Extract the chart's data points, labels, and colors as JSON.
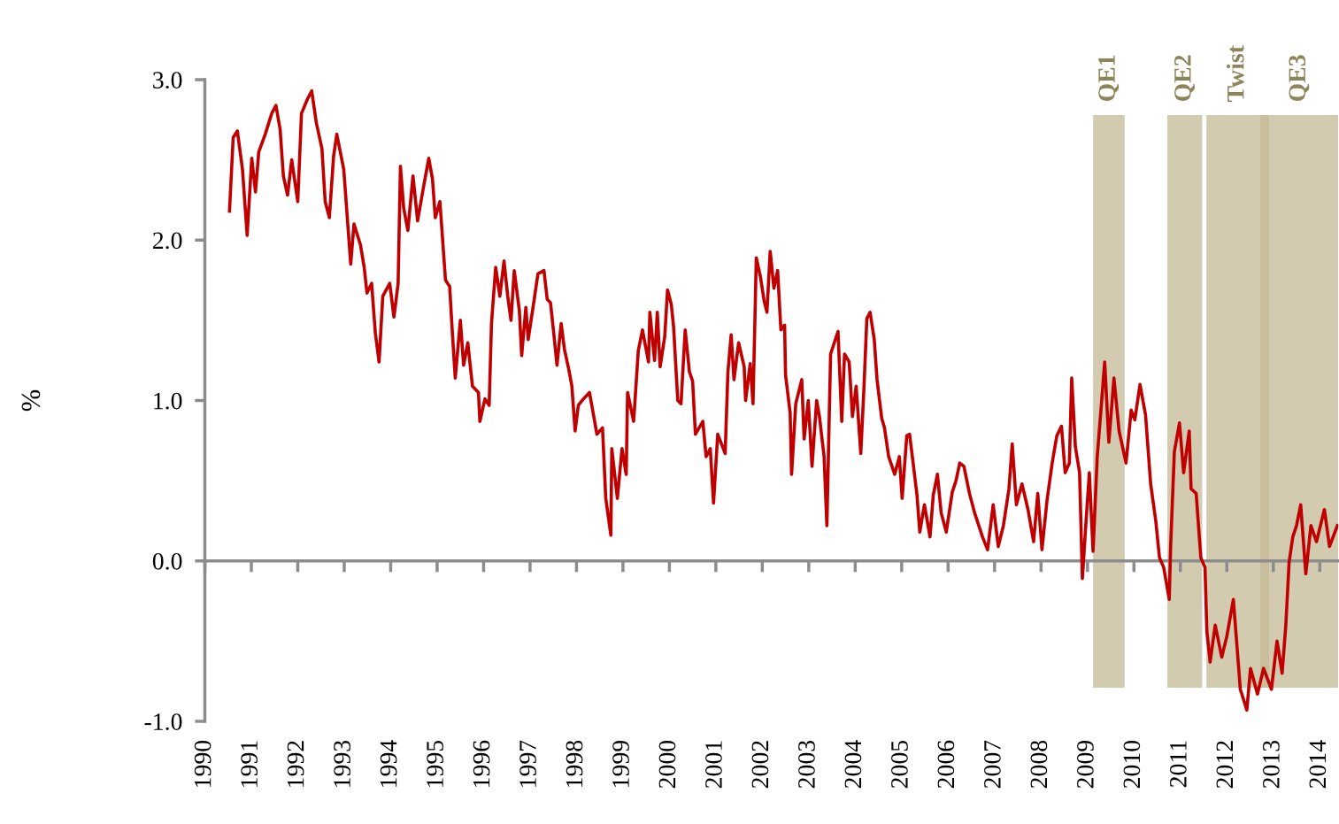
{
  "chart_data": {
    "type": "line",
    "ylabel": "%",
    "x": [
      1990.53,
      1990.61,
      1990.7,
      1990.81,
      1990.91,
      1991.01,
      1991.09,
      1991.16,
      1991.3,
      1991.44,
      1991.53,
      1991.62,
      1991.69,
      1991.78,
      1991.87,
      1992.0,
      1992.08,
      1992.21,
      1992.3,
      1992.4,
      1992.52,
      1992.59,
      1992.68,
      1992.77,
      1992.84,
      1992.99,
      1993.14,
      1993.21,
      1993.35,
      1993.43,
      1993.49,
      1993.59,
      1993.67,
      1993.75,
      1993.83,
      1993.98,
      1994.07,
      1994.16,
      1994.21,
      1994.28,
      1994.37,
      1994.48,
      1994.58,
      1994.7,
      1994.82,
      1994.9,
      1994.96,
      1995.06,
      1995.18,
      1995.27,
      1995.32,
      1995.39,
      1995.5,
      1995.57,
      1995.66,
      1995.76,
      1995.89,
      1995.92,
      1996.03,
      1996.12,
      1996.17,
      1996.26,
      1996.35,
      1996.44,
      1996.52,
      1996.59,
      1996.66,
      1996.77,
      1996.82,
      1996.91,
      1996.96,
      1997.09,
      1997.17,
      1997.3,
      1997.37,
      1997.44,
      1997.51,
      1997.58,
      1997.67,
      1997.74,
      1997.83,
      1997.9,
      1997.97,
      1998.04,
      1998.15,
      1998.28,
      1998.44,
      1998.56,
      1998.63,
      1998.74,
      1998.76,
      1998.88,
      1998.98,
      1999.07,
      1999.1,
      1999.23,
      1999.33,
      1999.42,
      1999.55,
      1999.58,
      1999.68,
      1999.74,
      1999.8,
      1999.9,
      1999.96,
      2000.04,
      2000.09,
      2000.18,
      2000.25,
      2000.34,
      2000.43,
      2000.5,
      2000.56,
      2000.72,
      2000.79,
      2000.88,
      2000.95,
      2001.04,
      2001.2,
      2001.26,
      2001.33,
      2001.39,
      2001.49,
      2001.61,
      2001.64,
      2001.74,
      2001.8,
      2001.84,
      2001.87,
      2001.96,
      2002.04,
      2002.1,
      2002.17,
      2002.25,
      2002.33,
      2002.4,
      2002.48,
      2002.5,
      2002.6,
      2002.63,
      2002.72,
      2002.85,
      2002.9,
      2002.99,
      2003.07,
      2003.17,
      2003.23,
      2003.33,
      2003.39,
      2003.47,
      2003.55,
      2003.63,
      2003.71,
      2003.77,
      2003.87,
      2003.94,
      2004.02,
      2004.12,
      2004.19,
      2004.25,
      2004.32,
      2004.41,
      2004.47,
      2004.57,
      2004.63,
      2004.72,
      2004.85,
      2004.95,
      2005.01,
      2005.11,
      2005.17,
      2005.23,
      2005.33,
      2005.39,
      2005.49,
      2005.61,
      2005.68,
      2005.77,
      2005.85,
      2005.96,
      2006.09,
      2006.17,
      2006.25,
      2006.34,
      2006.46,
      2006.57,
      2006.74,
      2006.85,
      2006.97,
      2007.08,
      2007.19,
      2007.31,
      2007.38,
      2007.47,
      2007.59,
      2007.72,
      2007.84,
      2007.93,
      2008.02,
      2008.13,
      2008.24,
      2008.34,
      2008.44,
      2008.52,
      2008.61,
      2008.66,
      2008.74,
      2008.83,
      2008.89,
      2008.97,
      2009.04,
      2009.12,
      2009.21,
      2009.29,
      2009.37,
      2009.46,
      2009.57,
      2009.68,
      2009.83,
      2009.94,
      2010.02,
      2010.13,
      2010.25,
      2010.36,
      2010.47,
      2010.55,
      2010.64,
      2010.76,
      2010.79,
      2010.87,
      2010.98,
      2011.07,
      2011.19,
      2011.23,
      2011.34,
      2011.44,
      2011.53,
      2011.57,
      2011.64,
      2011.75,
      2011.89,
      2012.0,
      2012.14,
      2012.21,
      2012.29,
      2012.43,
      2012.51,
      2012.66,
      2012.79,
      2012.96,
      2013.08,
      2013.19,
      2013.27,
      2013.34,
      2013.42,
      2013.5,
      2013.59,
      2013.7,
      2013.81,
      2013.93,
      2014.1,
      2014.21,
      2014.38
    ],
    "series": [
      {
        "color": "#c00000",
        "values": [
          2.18,
          2.64,
          2.68,
          2.44,
          2.03,
          2.51,
          2.3,
          2.55,
          2.66,
          2.79,
          2.84,
          2.69,
          2.4,
          2.28,
          2.5,
          2.24,
          2.79,
          2.88,
          2.93,
          2.73,
          2.57,
          2.24,
          2.14,
          2.52,
          2.66,
          2.44,
          1.85,
          2.1,
          1.97,
          1.83,
          1.67,
          1.73,
          1.42,
          1.24,
          1.65,
          1.73,
          1.52,
          1.73,
          2.46,
          2.2,
          2.06,
          2.4,
          2.12,
          2.32,
          2.51,
          2.38,
          2.14,
          2.24,
          1.75,
          1.71,
          1.46,
          1.14,
          1.5,
          1.22,
          1.36,
          1.09,
          1.05,
          0.87,
          1.01,
          0.97,
          1.48,
          1.83,
          1.65,
          1.87,
          1.65,
          1.5,
          1.81,
          1.56,
          1.28,
          1.58,
          1.38,
          1.63,
          1.79,
          1.81,
          1.63,
          1.61,
          1.42,
          1.22,
          1.48,
          1.32,
          1.2,
          1.09,
          0.81,
          0.97,
          1.01,
          1.05,
          0.79,
          0.83,
          0.39,
          0.16,
          0.7,
          0.39,
          0.7,
          0.54,
          1.05,
          0.87,
          1.31,
          1.44,
          1.24,
          1.55,
          1.25,
          1.55,
          1.21,
          1.4,
          1.69,
          1.6,
          1.46,
          1.0,
          0.98,
          1.44,
          1.18,
          1.12,
          0.79,
          0.87,
          0.65,
          0.7,
          0.36,
          0.79,
          0.67,
          1.18,
          1.41,
          1.13,
          1.36,
          1.21,
          1.0,
          1.23,
          0.98,
          1.49,
          1.89,
          1.77,
          1.62,
          1.55,
          1.93,
          1.7,
          1.81,
          1.44,
          1.47,
          1.16,
          0.92,
          0.54,
          0.98,
          1.13,
          0.76,
          1.0,
          0.59,
          1.0,
          0.9,
          0.65,
          0.22,
          1.29,
          1.36,
          1.43,
          0.87,
          1.29,
          1.24,
          0.9,
          1.09,
          0.67,
          1.09,
          1.51,
          1.55,
          1.38,
          1.13,
          0.89,
          0.83,
          0.65,
          0.54,
          0.65,
          0.39,
          0.78,
          0.79,
          0.65,
          0.41,
          0.18,
          0.35,
          0.15,
          0.41,
          0.54,
          0.3,
          0.18,
          0.43,
          0.5,
          0.61,
          0.59,
          0.42,
          0.3,
          0.15,
          0.07,
          0.35,
          0.09,
          0.22,
          0.45,
          0.73,
          0.35,
          0.48,
          0.32,
          0.12,
          0.42,
          0.07,
          0.38,
          0.61,
          0.78,
          0.84,
          0.55,
          0.61,
          1.14,
          0.71,
          0.55,
          -0.11,
          0.25,
          0.55,
          0.06,
          0.65,
          0.94,
          1.24,
          0.74,
          1.14,
          0.81,
          0.61,
          0.94,
          0.88,
          1.1,
          0.91,
          0.48,
          0.25,
          0.02,
          -0.04,
          -0.24,
          0.09,
          0.68,
          0.86,
          0.55,
          0.81,
          0.45,
          0.42,
          0.02,
          -0.04,
          -0.44,
          -0.63,
          -0.4,
          -0.6,
          -0.47,
          -0.24,
          -0.5,
          -0.8,
          -0.93,
          -0.67,
          -0.83,
          -0.67,
          -0.8,
          -0.5,
          -0.7,
          -0.4,
          -0.01,
          0.15,
          0.22,
          0.35,
          -0.08,
          0.22,
          0.12,
          0.32,
          0.09,
          0.22
        ]
      }
    ],
    "xlim": [
      1990,
      2014.4
    ],
    "xticks": [
      1990,
      1991,
      1992,
      1993,
      1994,
      1995,
      1996,
      1997,
      1998,
      1999,
      2000,
      2001,
      2002,
      2003,
      2004,
      2005,
      2006,
      2007,
      2008,
      2009,
      2010,
      2011,
      2012,
      2013,
      2014
    ],
    "ylim": [
      -1,
      3
    ],
    "yticks": [
      {
        "value": -1,
        "label": "-1.0"
      },
      {
        "value": 0,
        "label": "0.0"
      },
      {
        "value": 1,
        "label": "1.0"
      },
      {
        "value": 2,
        "label": "2.0"
      },
      {
        "value": 3,
        "label": "3.0"
      }
    ],
    "bands": [
      {
        "axis": "x",
        "from": 2009.12,
        "to": 2009.8,
        "label": "QE1",
        "color": "#c4b995"
      },
      {
        "axis": "x",
        "from": 2010.72,
        "to": 2011.47,
        "label": "QE2",
        "color": "#c4b995"
      },
      {
        "axis": "x",
        "from": 2011.56,
        "to": 2012.91,
        "label": "Twist",
        "color": "#c4b995"
      },
      {
        "axis": "x",
        "from": 2012.72,
        "to": 2014.4,
        "label": "QE3",
        "color": "#c4b995"
      }
    ],
    "legend": false,
    "line_style": "solid",
    "marker": "none"
  }
}
